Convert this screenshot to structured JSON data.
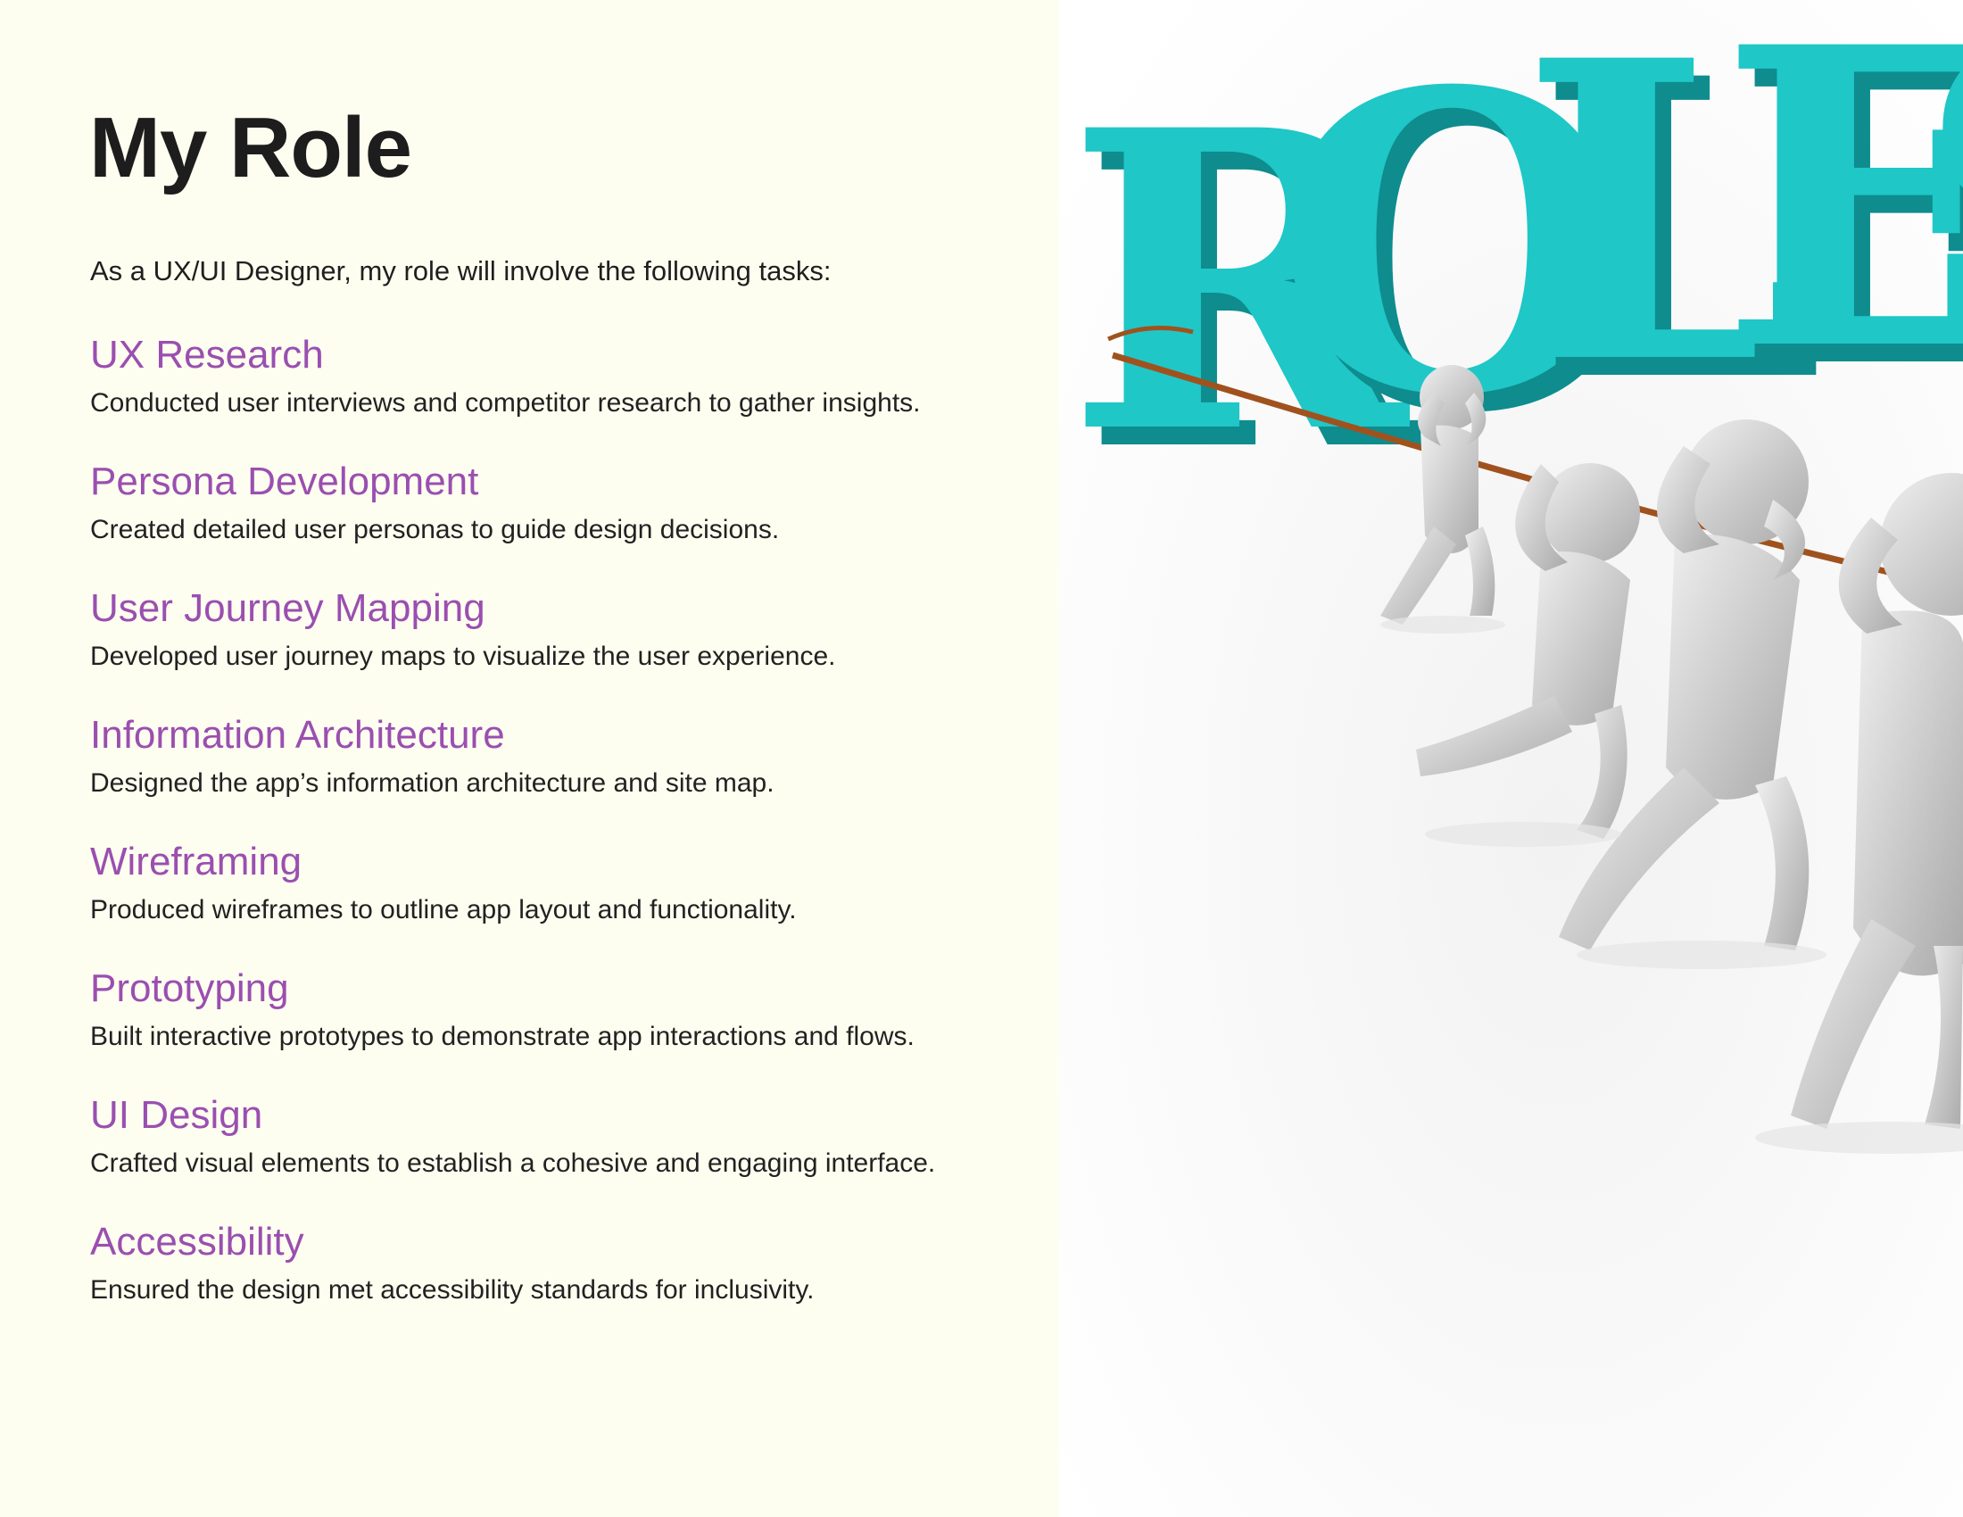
{
  "page": {
    "title": "My Role",
    "intro": "As a UX/UI Designer, my role will involve the following tasks:"
  },
  "tasks": [
    {
      "title": "UX Research",
      "description": "Conducted user interviews and competitor research to gather insights."
    },
    {
      "title": "Persona Development",
      "description": "Created detailed user personas to guide design decisions."
    },
    {
      "title": "User Journey Mapping",
      "description": "Developed user journey maps to visualize the user experience."
    },
    {
      "title": "Information Architecture",
      "description": "Designed the app’s information architecture and site map."
    },
    {
      "title": "Wireframing",
      "description": "Produced wireframes to outline app layout and functionality."
    },
    {
      "title": "Prototyping",
      "description": "Built interactive prototypes to demonstrate app interactions and flows."
    },
    {
      "title": "UI Design",
      "description": "Crafted visual elements to establish a cohesive and engaging interface."
    },
    {
      "title": "Accessibility",
      "description": "Ensured the design met accessibility standards for inclusivity."
    }
  ],
  "illustration": {
    "letters": [
      "R",
      "O",
      "L",
      "E",
      "S"
    ],
    "icon": "tug-of-war-roles-illustration",
    "colors": {
      "letter_face": "#1fc7c7",
      "letter_side": "#0e8c8e",
      "figure": "#d8d8d8",
      "rope": "#a0521e"
    }
  },
  "colors": {
    "panel_background": "#fefef0",
    "heading": "#1d1d1d",
    "task_title": "#9a4fb0",
    "body_text": "#222222"
  }
}
